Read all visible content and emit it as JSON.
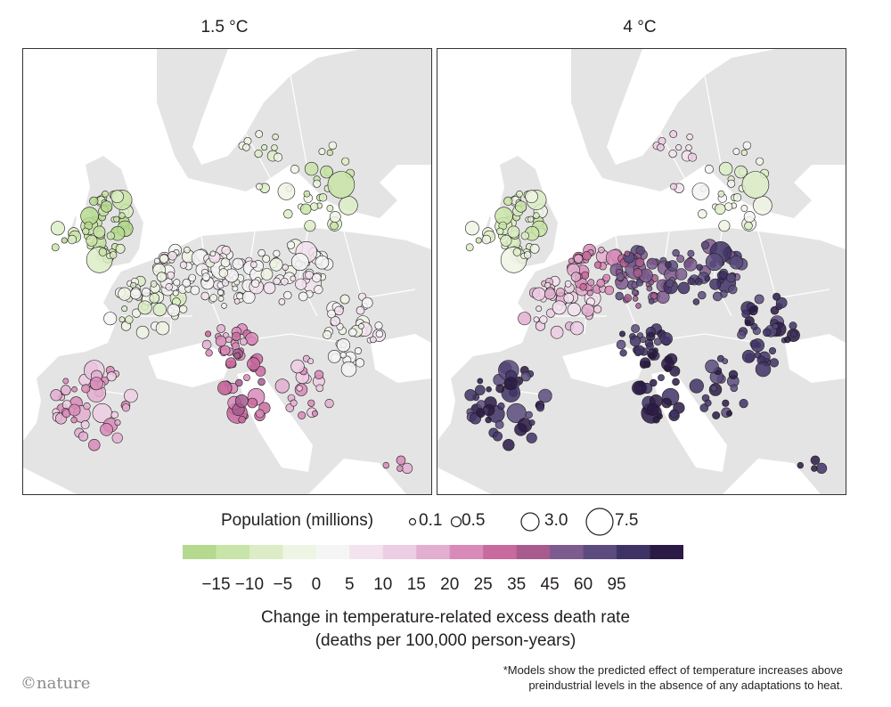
{
  "panels": [
    {
      "title": "1.5 °C",
      "scenario": "1.5C"
    },
    {
      "title": "4 °C",
      "scenario": "4C"
    }
  ],
  "population_legend": {
    "title": "Population (millions)",
    "items": [
      {
        "label": "0.1",
        "value": 0.1
      },
      {
        "label": "0.5",
        "value": 0.5
      },
      {
        "label": "3.0",
        "value": 3.0
      },
      {
        "label": "7.5",
        "value": 7.5
      }
    ]
  },
  "colorbar": {
    "ticks": [
      "−15",
      "−10",
      "−5",
      "0",
      "5",
      "10",
      "15",
      "20",
      "25",
      "35",
      "45",
      "60",
      "95"
    ],
    "colors": [
      "#b5d98f",
      "#c9e4a8",
      "#dcedc6",
      "#eef5e4",
      "#f5f5f5",
      "#f3e3ee",
      "#edcde3",
      "#e3afd0",
      "#d88ab9",
      "#c96a9f",
      "#a75b8f",
      "#7d5b8e",
      "#5b4b7e",
      "#3f3366",
      "#2a1a45"
    ],
    "title_line1": "Change in temperature-related excess death rate",
    "title_line2": "(deaths per 100,000 person-years)"
  },
  "brand": "©nature",
  "footnote": {
    "line1": "*Models show the predicted effect of temperature increases above",
    "line2": "preindustrial levels in the absence of any adaptations to heat."
  },
  "colors": {
    "land": "#e4e4e4",
    "sea": "#ffffff",
    "border": "#ffffff",
    "frame": "#333333"
  }
}
